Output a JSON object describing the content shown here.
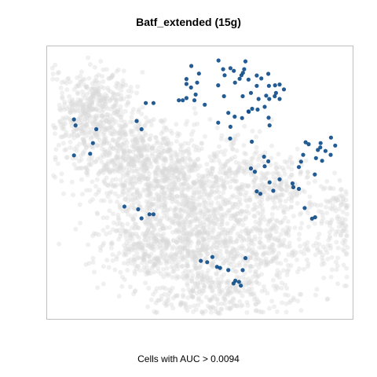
{
  "chart_data": {
    "type": "scatter",
    "title": "Batf_extended (15g)",
    "xlabel": "Cells with AUC > 0.0094",
    "ylabel": "",
    "grid": false,
    "legend": "none",
    "colors": {
      "background_points": "#d9d9d9",
      "highlight_points": "#0b4a87",
      "frame": "#bfbfbf"
    },
    "xlim": [
      0,
      100
    ],
    "ylim": [
      0,
      100
    ],
    "series": [
      {
        "name": "",
        "role": "highlighted",
        "points": [
          [
            47.2,
            92.8
          ],
          [
            49.7,
            90.0
          ],
          [
            45.6,
            88.0
          ],
          [
            45.6,
            86.2
          ],
          [
            49.1,
            86.7
          ],
          [
            47.1,
            84.9
          ],
          [
            48.6,
            82.3
          ],
          [
            45.6,
            81.0
          ],
          [
            48.2,
            80.2
          ],
          [
            51.6,
            78.6
          ],
          [
            44.4,
            80.2
          ],
          [
            43.1,
            80.2
          ],
          [
            56.1,
            94.8
          ],
          [
            57.6,
            91.6
          ],
          [
            60.0,
            92.0
          ],
          [
            61.1,
            91.0
          ],
          [
            63.6,
            89.4
          ],
          [
            64.5,
            91.6
          ],
          [
            64.9,
            94.5
          ],
          [
            64.1,
            90.3
          ],
          [
            63.0,
            88.1
          ],
          [
            58.1,
            89.4
          ],
          [
            61.5,
            86.7
          ],
          [
            65.9,
            87.8
          ],
          [
            68.6,
            89.3
          ],
          [
            68.6,
            85.5
          ],
          [
            70.1,
            88.2
          ],
          [
            72.6,
            85.5
          ],
          [
            72.4,
            89.9
          ],
          [
            74.6,
            85.7
          ],
          [
            74.9,
            82.9
          ],
          [
            76.1,
            86.0
          ],
          [
            77.5,
            84.2
          ],
          [
            76.1,
            80.7
          ],
          [
            74.5,
            81.7
          ],
          [
            72.7,
            80.7
          ],
          [
            71.7,
            81.9
          ],
          [
            71.2,
            77.8
          ],
          [
            68.9,
            76.8
          ],
          [
            69.2,
            80.7
          ],
          [
            66.7,
            82.9
          ],
          [
            64.0,
            81.7
          ],
          [
            65.9,
            76.1
          ],
          [
            61.4,
            74.2
          ],
          [
            63.8,
            73.7
          ],
          [
            59.3,
            75.6
          ],
          [
            57.9,
            81.7
          ],
          [
            56.0,
            85.7
          ],
          [
            60.0,
            70.5
          ],
          [
            59.9,
            66.2
          ],
          [
            72.8,
            71.0
          ],
          [
            72.5,
            73.8
          ],
          [
            67.1,
            77.1
          ],
          [
            66.0,
            76.0
          ],
          [
            67.0,
            65.0
          ],
          [
            56.0,
            72.0
          ],
          [
            32.3,
            79.2
          ],
          [
            34.8,
            79.2
          ],
          [
            29.3,
            72.6
          ],
          [
            30.9,
            69.6
          ],
          [
            8.8,
            73.2
          ],
          [
            9.3,
            71.0
          ],
          [
            16.1,
            69.6
          ],
          [
            15.0,
            64.5
          ],
          [
            14.1,
            60.6
          ],
          [
            8.8,
            60.0
          ],
          [
            25.3,
            41.2
          ],
          [
            29.8,
            40.2
          ],
          [
            30.9,
            36.9
          ],
          [
            33.5,
            38.4
          ],
          [
            34.8,
            38.4
          ],
          [
            71.0,
            59.5
          ],
          [
            66.7,
            55.2
          ],
          [
            72.4,
            57.8
          ],
          [
            71.2,
            56.0
          ],
          [
            72.8,
            50.1
          ],
          [
            76.1,
            51.2
          ],
          [
            68.6,
            46.8
          ],
          [
            69.8,
            45.9
          ],
          [
            68.0,
            54.0
          ],
          [
            83.8,
            60.2
          ],
          [
            85.6,
            64.1
          ],
          [
            88.6,
            62.0
          ],
          [
            89.4,
            62.9
          ],
          [
            91.1,
            61.6
          ],
          [
            92.8,
            60.2
          ],
          [
            94.3,
            63.6
          ],
          [
            92.9,
            66.5
          ],
          [
            89.5,
            64.5
          ],
          [
            84.6,
            64.8
          ],
          [
            82.4,
            55.7
          ],
          [
            83.1,
            57.7
          ],
          [
            87.6,
            53.0
          ],
          [
            80.6,
            48.3
          ],
          [
            82.4,
            47.7
          ],
          [
            80.3,
            49.7
          ],
          [
            84.3,
            40.7
          ],
          [
            87.7,
            37.3
          ],
          [
            86.7,
            36.8
          ],
          [
            74.0,
            47.0
          ],
          [
            88.0,
            59.0
          ],
          [
            90.0,
            58.0
          ],
          [
            50.3,
            21.3
          ],
          [
            54.1,
            22.7
          ],
          [
            52.4,
            20.8
          ],
          [
            55.6,
            19.1
          ],
          [
            56.6,
            18.7
          ],
          [
            59.3,
            17.9
          ],
          [
            64.0,
            17.9
          ],
          [
            64.9,
            22.3
          ],
          [
            62.8,
            13.6
          ],
          [
            61.6,
            14.0
          ],
          [
            63.4,
            12.2
          ],
          [
            61.0,
            13.0
          ]
        ]
      }
    ]
  }
}
